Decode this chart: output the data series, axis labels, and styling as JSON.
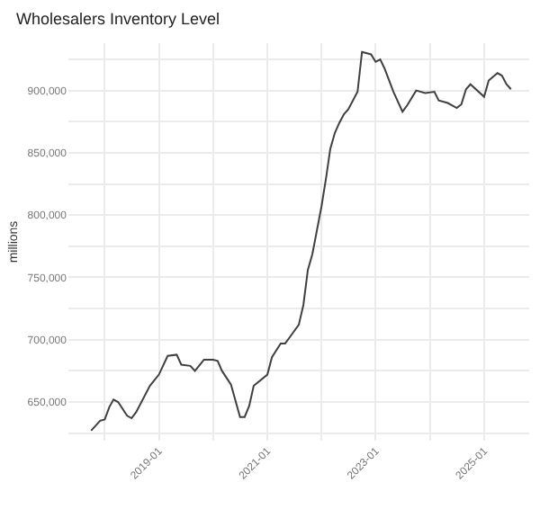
{
  "chart_data": {
    "type": "line",
    "title": "Wholesalers Inventory Level",
    "ylabel": "millions",
    "x": [
      "2017-10",
      "2017-12",
      "2018-01",
      "2018-02",
      "2018-03",
      "2018-04",
      "2018-06",
      "2018-07",
      "2018-08",
      "2018-11",
      "2019-01",
      "2019-03",
      "2019-05",
      "2019-06",
      "2019-08",
      "2019-09",
      "2019-11",
      "2020-01",
      "2020-02",
      "2020-03",
      "2020-05",
      "2020-07",
      "2020-08",
      "2020-09",
      "2020-10",
      "2021-01",
      "2021-02",
      "2021-04",
      "2021-05",
      "2021-06",
      "2021-08",
      "2021-09",
      "2021-10",
      "2021-11",
      "2022-01",
      "2022-02",
      "2022-03",
      "2022-04",
      "2022-05",
      "2022-06",
      "2022-07",
      "2022-09",
      "2022-10",
      "2022-12",
      "2023-01",
      "2023-02",
      "2023-03",
      "2023-05",
      "2023-07",
      "2023-08",
      "2023-10",
      "2023-12",
      "2024-02",
      "2024-03",
      "2024-05",
      "2024-07",
      "2024-08",
      "2024-09",
      "2024-10",
      "2025-01",
      "2025-02",
      "2025-04",
      "2025-05",
      "2025-06",
      "2025-07"
    ],
    "series": [
      {
        "color": "#404040",
        "values": [
          627000,
          635000,
          636000,
          646000,
          652000,
          650000,
          639000,
          637000,
          642000,
          663000,
          672000,
          687000,
          688000,
          680000,
          679000,
          675000,
          684000,
          684000,
          683000,
          675000,
          664000,
          638000,
          638000,
          647000,
          663000,
          672000,
          686000,
          697000,
          697000,
          702000,
          712000,
          728000,
          756000,
          769000,
          807000,
          830000,
          853000,
          866000,
          874000,
          881000,
          885000,
          899000,
          931000,
          929000,
          923000,
          925000,
          918000,
          899000,
          883000,
          888000,
          900000,
          898000,
          899000,
          892000,
          890000,
          886000,
          889000,
          901000,
          905000,
          895000,
          908000,
          914000,
          912000,
          905000,
          901000
        ]
      }
    ],
    "xlim": [
      "2017-05",
      "2025-11"
    ],
    "xticks": [
      {
        "value": "2018-01",
        "label": null
      },
      {
        "value": "2019-01",
        "label": "2019-01"
      },
      {
        "value": "2020-01",
        "label": null
      },
      {
        "value": "2021-01",
        "label": "2021-01"
      },
      {
        "value": "2022-01",
        "label": null
      },
      {
        "value": "2023-01",
        "label": "2023-01"
      },
      {
        "value": "2024-01",
        "label": null
      },
      {
        "value": "2025-01",
        "label": "2025-01"
      }
    ],
    "ylim": [
      619000,
      938000
    ],
    "yticks": [
      {
        "value": 625000,
        "label": null
      },
      {
        "value": 650000,
        "label": "650,000"
      },
      {
        "value": 675000,
        "label": null
      },
      {
        "value": 700000,
        "label": "700,000"
      },
      {
        "value": 725000,
        "label": null
      },
      {
        "value": 750000,
        "label": "750,000"
      },
      {
        "value": 775000,
        "label": null
      },
      {
        "value": 800000,
        "label": "800,000"
      },
      {
        "value": 825000,
        "label": null
      },
      {
        "value": 850000,
        "label": "850,000"
      },
      {
        "value": 875000,
        "label": null
      },
      {
        "value": 900000,
        "label": "900,000"
      },
      {
        "value": 925000,
        "label": null
      }
    ],
    "grid": true,
    "marker": "none",
    "line_style": "solid",
    "legend": false
  }
}
